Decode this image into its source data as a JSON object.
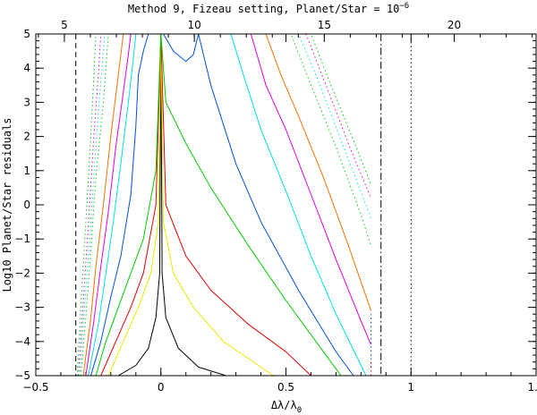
{
  "chart_data": {
    "type": "line",
    "title": "Method 9, Fizeau setting, Planet/Star = 10",
    "title_exponent": "−6",
    "xlabel": "Δλ/λ",
    "xlabel_sub": "0",
    "ylabel": "Log10 Planet/Star residuals",
    "xlim": [
      -0.5,
      1.5
    ],
    "ylim": [
      -5,
      5
    ],
    "x_ticks": [
      {
        "value": -0.5,
        "label": "−0.5"
      },
      {
        "value": 0,
        "label": "0"
      },
      {
        "value": 0.5,
        "label": "0.5"
      },
      {
        "value": 1,
        "label": "1"
      },
      {
        "value": 1.5,
        "label": "1.5"
      }
    ],
    "y_ticks": [
      {
        "value": -5,
        "label": "−5"
      },
      {
        "value": -4,
        "label": "−4"
      },
      {
        "value": -3,
        "label": "−3"
      },
      {
        "value": -2,
        "label": "−2"
      },
      {
        "value": -1,
        "label": "−1"
      },
      {
        "value": 0,
        "label": "0"
      },
      {
        "value": 1,
        "label": "1"
      },
      {
        "value": 2,
        "label": "2"
      },
      {
        "value": 3,
        "label": "3"
      },
      {
        "value": 4,
        "label": "4"
      },
      {
        "value": 5,
        "label": "5"
      }
    ],
    "top_axis": {
      "xlim": [
        3.9,
        23.15
      ],
      "ticks": [
        {
          "value": 5,
          "label": "5"
        },
        {
          "value": 10,
          "label": "10"
        },
        {
          "value": 15,
          "label": "15"
        },
        {
          "value": 20,
          "label": "20"
        }
      ]
    },
    "grid": false,
    "legend": "none",
    "vertical_lines": [
      {
        "x": -0.34,
        "style": "dashed"
      },
      {
        "x": 0.88,
        "style": "dashdot"
      },
      {
        "x": 1.0,
        "style": "dotted"
      }
    ],
    "series": [
      {
        "color": "#000000",
        "style": "solid",
        "points": [
          [
            -0.17,
            -5
          ],
          [
            -0.1,
            -4.7
          ],
          [
            -0.05,
            -4.2
          ],
          [
            -0.02,
            -3.3
          ],
          [
            -0.005,
            -2
          ],
          [
            0,
            5
          ],
          [
            0.005,
            -2
          ],
          [
            0.02,
            -3.3
          ],
          [
            0.07,
            -4.2
          ],
          [
            0.15,
            -4.75
          ],
          [
            0.26,
            -5
          ]
        ]
      },
      {
        "color": "#e8e800",
        "style": "solid",
        "points": [
          [
            -0.21,
            -5
          ],
          [
            -0.15,
            -4
          ],
          [
            -0.09,
            -3
          ],
          [
            -0.04,
            -2
          ],
          [
            -0.01,
            -0.5
          ],
          [
            0,
            5
          ],
          [
            0.01,
            -0.5
          ],
          [
            0.05,
            -2
          ],
          [
            0.13,
            -3
          ],
          [
            0.25,
            -4
          ],
          [
            0.45,
            -5
          ]
        ]
      },
      {
        "color": "#e00000",
        "style": "solid",
        "points": [
          [
            -0.24,
            -5
          ],
          [
            -0.18,
            -4
          ],
          [
            -0.12,
            -3
          ],
          [
            -0.07,
            -2
          ],
          [
            -0.02,
            0
          ],
          [
            0,
            5
          ],
          [
            0.02,
            0
          ],
          [
            0.1,
            -1.5
          ],
          [
            0.2,
            -2.5
          ],
          [
            0.35,
            -3.5
          ],
          [
            0.5,
            -4.3
          ],
          [
            0.6,
            -5
          ]
        ]
      },
      {
        "color": "#00cc00",
        "style": "solid",
        "points": [
          [
            -0.26,
            -5
          ],
          [
            -0.22,
            -4
          ],
          [
            -0.17,
            -3
          ],
          [
            -0.12,
            -2
          ],
          [
            -0.07,
            -1
          ],
          [
            -0.02,
            1
          ],
          [
            0,
            5
          ],
          [
            0.02,
            3
          ],
          [
            0.1,
            1.8
          ],
          [
            0.2,
            0.5
          ],
          [
            0.35,
            -1.2
          ],
          [
            0.5,
            -2.8
          ],
          [
            0.65,
            -4.3
          ],
          [
            0.72,
            -5
          ]
        ]
      },
      {
        "color": "#0050d8",
        "style": "solid",
        "points": [
          [
            -0.28,
            -5
          ],
          [
            -0.24,
            -4
          ],
          [
            -0.2,
            -2.7
          ],
          [
            -0.16,
            -1.5
          ],
          [
            -0.12,
            0.3
          ],
          [
            -0.1,
            2.3
          ],
          [
            -0.09,
            3.8
          ],
          [
            -0.07,
            4.5
          ],
          [
            -0.05,
            5
          ],
          [
            -0.01,
            5
          ],
          [
            0,
            5
          ],
          [
            0.01,
            5
          ],
          [
            0.05,
            4.5
          ],
          [
            0.1,
            4.2
          ],
          [
            0.13,
            4.4
          ],
          [
            0.15,
            5
          ],
          [
            0.2,
            3.5
          ],
          [
            0.3,
            1.2
          ],
          [
            0.4,
            -0.5
          ],
          [
            0.55,
            -2.5
          ],
          [
            0.7,
            -4.3
          ],
          [
            0.77,
            -5
          ]
        ]
      },
      {
        "color": "#00e0e0",
        "style": "solid",
        "points": [
          [
            -0.29,
            -5
          ],
          [
            -0.25,
            -3.5
          ],
          [
            -0.22,
            -2
          ],
          [
            -0.19,
            -0.5
          ],
          [
            -0.16,
            1.2
          ],
          [
            -0.13,
            3
          ],
          [
            -0.11,
            4.3
          ],
          [
            -0.1,
            5
          ],
          [
            0.28,
            5
          ],
          [
            0.33,
            3.8
          ],
          [
            0.4,
            2.2
          ],
          [
            0.5,
            0.4
          ],
          [
            0.6,
            -1.5
          ],
          [
            0.7,
            -3.2
          ],
          [
            0.8,
            -4.7
          ],
          [
            0.82,
            -5
          ]
        ]
      },
      {
        "color": "#e000e0",
        "style": "solid",
        "points": [
          [
            -0.3,
            -5
          ],
          [
            -0.27,
            -3.5
          ],
          [
            -0.24,
            -1.8
          ],
          [
            -0.21,
            -0.2
          ],
          [
            -0.18,
            1.7
          ],
          [
            -0.15,
            3.3
          ],
          [
            -0.13,
            4.4
          ],
          [
            -0.12,
            5
          ],
          [
            0.36,
            5
          ],
          [
            0.42,
            3.5
          ],
          [
            0.5,
            2.2
          ],
          [
            0.6,
            0.3
          ],
          [
            0.7,
            -1.6
          ],
          [
            0.8,
            -3.4
          ],
          [
            0.84,
            -4.1
          ]
        ]
      },
      {
        "color": "#ff7000",
        "style": "solid",
        "points": [
          [
            -0.31,
            -5
          ],
          [
            -0.28,
            -3.3
          ],
          [
            -0.26,
            -1.8
          ],
          [
            -0.23,
            0
          ],
          [
            -0.2,
            2
          ],
          [
            -0.17,
            3.8
          ],
          [
            -0.15,
            5
          ],
          [
            0.42,
            5
          ],
          [
            0.48,
            3.8
          ],
          [
            0.55,
            2.6
          ],
          [
            0.65,
            0.8
          ],
          [
            0.75,
            -1.2
          ],
          [
            0.84,
            -3.1
          ]
        ]
      },
      {
        "color": "#00cc00",
        "style": "dotted",
        "points": [
          [
            -0.32,
            -5
          ],
          [
            -0.3,
            -3.3
          ],
          [
            -0.28,
            -1.3
          ],
          [
            -0.26,
            0.8
          ],
          [
            -0.23,
            3
          ],
          [
            -0.21,
            5
          ],
          [
            0.52,
            5
          ],
          [
            0.6,
            3.5
          ],
          [
            0.7,
            1.7
          ],
          [
            0.8,
            -0.3
          ],
          [
            0.84,
            -1.2
          ]
        ]
      },
      {
        "color": "#00e0e0",
        "style": "dotted",
        "points": [
          [
            -0.325,
            -5
          ],
          [
            -0.305,
            -3
          ],
          [
            -0.285,
            -1
          ],
          [
            -0.265,
            1.2
          ],
          [
            -0.245,
            3.2
          ],
          [
            -0.225,
            5
          ],
          [
            0.55,
            5
          ],
          [
            0.62,
            3.8
          ],
          [
            0.72,
            1.9
          ],
          [
            0.82,
            0
          ],
          [
            0.84,
            -0.4
          ]
        ]
      },
      {
        "color": "#e000e0",
        "style": "dotted",
        "points": [
          [
            -0.33,
            -5
          ],
          [
            -0.31,
            -2.8
          ],
          [
            -0.29,
            -0.6
          ],
          [
            -0.27,
            1.8
          ],
          [
            -0.25,
            3.8
          ],
          [
            -0.24,
            5
          ],
          [
            0.58,
            5
          ],
          [
            0.66,
            3.5
          ],
          [
            0.76,
            1.6
          ],
          [
            0.84,
            0.2
          ]
        ]
      },
      {
        "color": "#00cc00",
        "style": "dotted",
        "points": [
          [
            -0.335,
            -5
          ],
          [
            -0.32,
            -3
          ],
          [
            -0.3,
            -0.5
          ],
          [
            -0.28,
            2
          ],
          [
            -0.26,
            5
          ],
          [
            0.6,
            5
          ],
          [
            0.68,
            3.5
          ],
          [
            0.78,
            1.7
          ],
          [
            0.84,
            0.6
          ]
        ]
      },
      {
        "color": "#0050d8",
        "style": "dotted",
        "points": [
          [
            0.84,
            -5
          ],
          [
            0.84,
            -3.2
          ]
        ]
      },
      {
        "color": "#e00000",
        "style": "dotted",
        "points": [
          [
            0.84,
            -5
          ],
          [
            0.84,
            -4.6
          ]
        ]
      }
    ]
  }
}
